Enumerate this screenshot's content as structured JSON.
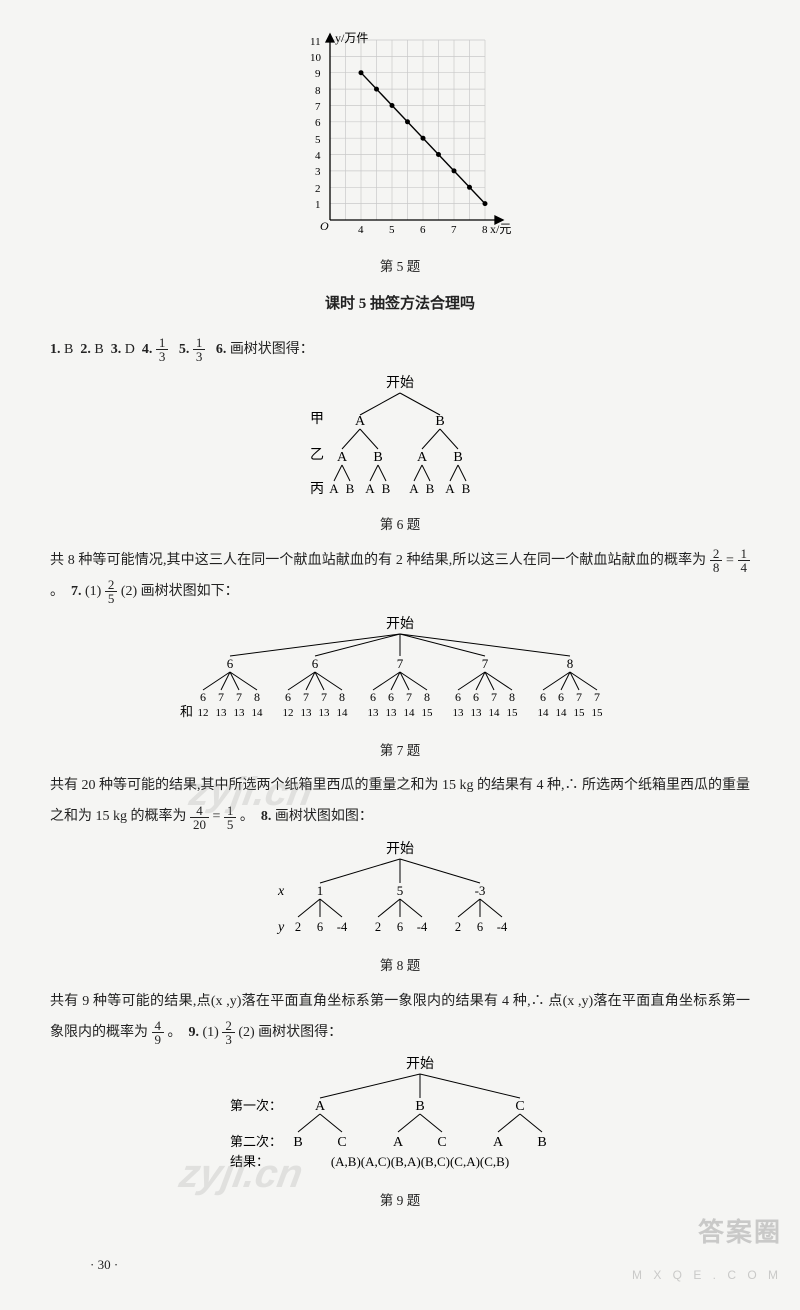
{
  "chart5": {
    "ylabel": "y/万件",
    "xlabel": "x/元",
    "caption": "第 5 题",
    "xlim": [
      3,
      8.5
    ],
    "ylim": [
      0,
      11
    ],
    "xticks": [
      4,
      5,
      6,
      7,
      8
    ],
    "yticks": [
      1,
      2,
      3,
      4,
      5,
      6,
      7,
      8,
      9,
      10,
      11
    ],
    "points": [
      [
        4,
        9
      ],
      [
        4.5,
        8
      ],
      [
        5,
        7
      ],
      [
        5.5,
        6
      ],
      [
        6,
        5
      ],
      [
        6.5,
        4
      ],
      [
        7,
        3
      ],
      [
        7.5,
        2
      ],
      [
        8,
        1
      ]
    ],
    "grid_color": "#c9c9c9",
    "axis_color": "#000000",
    "dot_color": "#000000",
    "axis_fontsize": 12
  },
  "section_title": "课时 5  抽签方法合理吗",
  "answers": {
    "a1": {
      "n": "1.",
      "v": "B"
    },
    "a2": {
      "n": "2.",
      "v": "B"
    },
    "a3": {
      "n": "3.",
      "v": "D"
    },
    "a4": {
      "n": "4.",
      "frac_num": "1",
      "frac_den": "3"
    },
    "a5": {
      "n": "5.",
      "frac_num": "1",
      "frac_den": "3"
    },
    "a6": {
      "n": "6.",
      "v": "画树状图得："
    }
  },
  "tree6": {
    "start": "开始",
    "row_labels": [
      "甲",
      "乙",
      "丙"
    ],
    "level1": [
      "A",
      "B"
    ],
    "level2": [
      "A",
      "B",
      "A",
      "B"
    ],
    "level3": [
      "A",
      "B",
      "A",
      "B",
      "A",
      "B",
      "A",
      "B"
    ],
    "caption": "第 6 题"
  },
  "p6": {
    "text1": "共 8 种等可能情况,其中这三人在同一个献血站献血的有 2 种结果,所以这三人在同一个献血站献血的概率为",
    "frac1_num": "2",
    "frac1_den": "8",
    "eq": " = ",
    "frac2_num": "1",
    "frac2_den": "4",
    "period": "。",
    "a7n": "7.",
    "a7_1": "(1) ",
    "frac3_num": "2",
    "frac3_den": "5",
    "a7_2": "  (2) 画树状图如下："
  },
  "tree7": {
    "start": "开始",
    "level1": [
      "6",
      "6",
      "7",
      "7",
      "8"
    ],
    "level2": [
      [
        "6",
        "7",
        "7",
        "8"
      ],
      [
        "6",
        "7",
        "7",
        "8"
      ],
      [
        "6",
        "6",
        "7",
        "8"
      ],
      [
        "6",
        "6",
        "7",
        "8"
      ],
      [
        "6",
        "6",
        "7",
        "7"
      ]
    ],
    "sum_label": "和",
    "sums": [
      [
        "12",
        "13",
        "13",
        "14"
      ],
      [
        "12",
        "13",
        "13",
        "14"
      ],
      [
        "13",
        "13",
        "14",
        "15"
      ],
      [
        "13",
        "13",
        "14",
        "15"
      ],
      [
        "14",
        "14",
        "15",
        "15"
      ]
    ],
    "caption": "第 7 题"
  },
  "p7": {
    "text1": "共有 20 种等可能的结果,其中所选两个纸箱里西瓜的重量之和为 15 kg 的结果有 4 种,∴ 所选两个纸箱里西瓜的重量之和为 15 kg 的概率为",
    "frac1_num": "4",
    "frac1_den": "20",
    "eq": " = ",
    "frac2_num": "1",
    "frac2_den": "5",
    "period": "。",
    "a8n": "8.",
    "a8_t": "画树状图如图："
  },
  "tree8": {
    "start": "开始",
    "x_label": "x",
    "y_label": "y",
    "level1": [
      "1",
      "5",
      "-3"
    ],
    "level2": [
      [
        "2",
        "6",
        "-4"
      ],
      [
        "2",
        "6",
        "-4"
      ],
      [
        "2",
        "6",
        "-4"
      ]
    ],
    "caption": "第 8 题"
  },
  "p8": {
    "text1": "共有 9 种等可能的结果,点(x ,y)落在平面直角坐标系第一象限内的结果有 4 种,∴ 点(x ,y)落在平面直角坐标系第一象限内的概率为",
    "frac1_num": "4",
    "frac1_den": "9",
    "period": "。",
    "a9n": "9.",
    "a9_1": "(1) ",
    "frac2_num": "2",
    "frac2_den": "3",
    "a9_2": "  (2) 画树状图得："
  },
  "tree9": {
    "start": "开始",
    "row_labels": [
      "第一次：",
      "第二次：",
      "结果："
    ],
    "level1": [
      "A",
      "B",
      "C"
    ],
    "level2": [
      [
        "B",
        "C"
      ],
      [
        "A",
        "C"
      ],
      [
        "A",
        "B"
      ]
    ],
    "results": "(A,B)(A,C)(B,A)(B,C)(C,A)(C,B)",
    "caption": "第 9 题"
  },
  "page_number": "· 30 ·",
  "watermarks": {
    "zyjl1": "zyjl.cn",
    "zyjl2": "zyjl.cn",
    "brand_big": "答案圈",
    "brand_small": "M X Q E . C O M"
  }
}
